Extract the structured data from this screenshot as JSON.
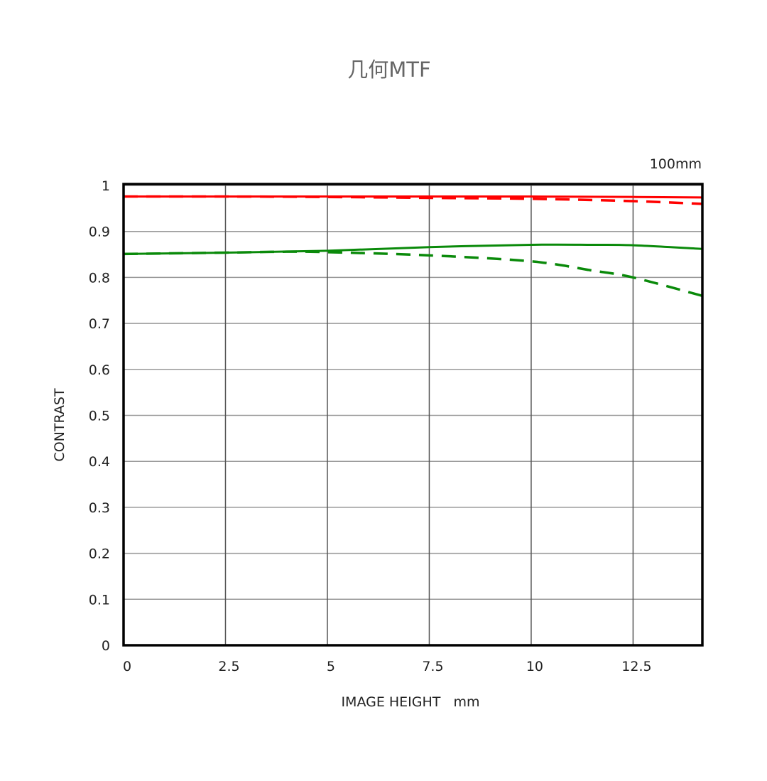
{
  "chart_data": {
    "type": "line",
    "title": "几何MTF",
    "subtitle": "100mm",
    "xlabel": "IMAGE HEIGHT   mm",
    "ylabel": "CONTRAST",
    "xlim": [
      0,
      14.2
    ],
    "ylim": [
      0,
      1
    ],
    "grid": true,
    "x_ticks": [
      "0",
      "2.5",
      "5",
      "7.5",
      "10",
      "12.5"
    ],
    "y_ticks": [
      "0",
      "0.1",
      "0.2",
      "0.3",
      "0.4",
      "0.5",
      "0.6",
      "0.7",
      "0.8",
      "0.9",
      "1"
    ],
    "series": [
      {
        "color": "#ff0000",
        "style": "solid",
        "x": [
          0,
          2.5,
          5,
          7.5,
          10,
          12.5,
          14.2
        ],
        "y": [
          0.976,
          0.976,
          0.976,
          0.976,
          0.976,
          0.975,
          0.974
        ]
      },
      {
        "color": "#ff0000",
        "style": "dashed",
        "x": [
          0,
          2.5,
          5,
          7.5,
          10,
          12.5,
          14.2
        ],
        "y": [
          0.976,
          0.976,
          0.975,
          0.973,
          0.971,
          0.966,
          0.96
        ]
      },
      {
        "color": "#0a8a0a",
        "style": "solid",
        "x": [
          0,
          2.5,
          5,
          7.5,
          10,
          11.5,
          12.5,
          14.2
        ],
        "y": [
          0.851,
          0.854,
          0.858,
          0.866,
          0.871,
          0.871,
          0.87,
          0.862
        ]
      },
      {
        "color": "#0a8a0a",
        "style": "dashed",
        "x": [
          0,
          2.5,
          4,
          5,
          7.5,
          10,
          11.5,
          12.5,
          14.2
        ],
        "y": [
          0.851,
          0.854,
          0.856,
          0.855,
          0.848,
          0.835,
          0.815,
          0.8,
          0.76
        ]
      }
    ]
  }
}
